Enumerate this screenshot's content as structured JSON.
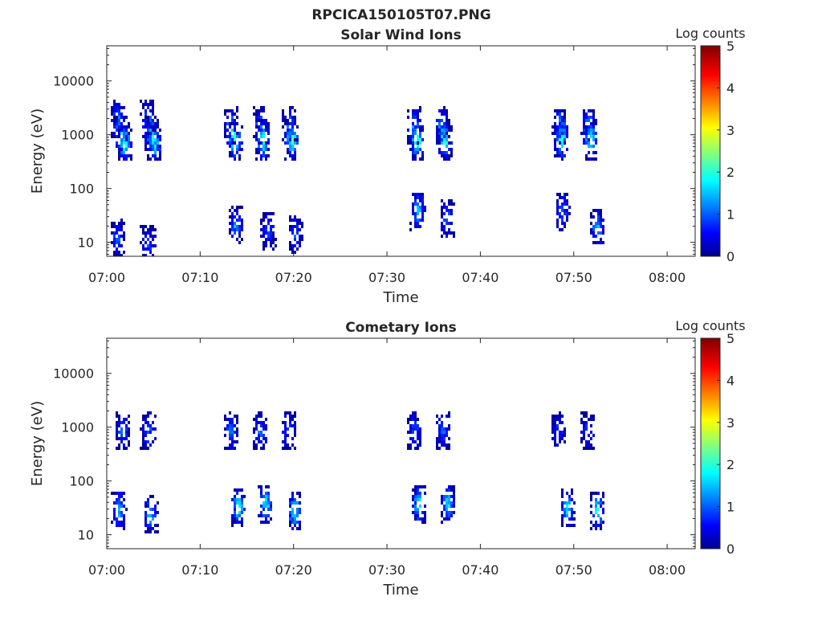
{
  "figure": {
    "title": "RPCICA150105T07.PNG"
  },
  "chart_data": [
    {
      "type": "heatmap",
      "title": "Solar Wind Ions",
      "xlabel": "Time",
      "ylabel": "Energy (eV)",
      "x_ticks": [
        "07:00",
        "07:10",
        "07:20",
        "07:30",
        "07:40",
        "07:50",
        "08:00"
      ],
      "x_range_minutes": [
        0,
        63
      ],
      "y_scale": "log",
      "y_ticks": [
        "10",
        "100",
        "1000",
        "10000"
      ],
      "y_range": [
        5.5,
        45000
      ],
      "colorbar": {
        "label": "Log counts",
        "ticks": [
          "0",
          "1",
          "2",
          "3",
          "4",
          "5"
        ],
        "range": [
          0,
          5
        ],
        "colormap": "jet"
      },
      "blobs": [
        {
          "t": 1.0,
          "e": 2000,
          "c": 1.5
        },
        {
          "t": 1.4,
          "e": 1100,
          "c": 2.2
        },
        {
          "t": 1.8,
          "e": 750,
          "c": 2.4
        },
        {
          "t": 4.3,
          "e": 2000,
          "c": 1.5
        },
        {
          "t": 4.7,
          "e": 1000,
          "c": 2.3
        },
        {
          "t": 5.0,
          "e": 750,
          "c": 2.2
        },
        {
          "t": 13.2,
          "e": 1500,
          "c": 1.6
        },
        {
          "t": 13.6,
          "e": 850,
          "c": 2.6
        },
        {
          "t": 16.3,
          "e": 1500,
          "c": 1.6
        },
        {
          "t": 16.6,
          "e": 850,
          "c": 2.5
        },
        {
          "t": 19.4,
          "e": 1500,
          "c": 1.6
        },
        {
          "t": 19.7,
          "e": 850,
          "c": 2.5
        },
        {
          "t": 32.8,
          "e": 1500,
          "c": 1.6
        },
        {
          "t": 33.1,
          "e": 850,
          "c": 2.6
        },
        {
          "t": 35.8,
          "e": 1500,
          "c": 1.6
        },
        {
          "t": 36.1,
          "e": 850,
          "c": 2.4
        },
        {
          "t": 48.4,
          "e": 1500,
          "c": 1.6
        },
        {
          "t": 48.6,
          "e": 850,
          "c": 2.4
        },
        {
          "t": 51.5,
          "e": 1500,
          "c": 1.6
        },
        {
          "t": 51.7,
          "e": 850,
          "c": 2.3
        },
        {
          "t": 1.0,
          "e": 12,
          "c": 1.2
        },
        {
          "t": 4.3,
          "e": 10,
          "c": 1.0
        },
        {
          "t": 13.7,
          "e": 22,
          "c": 1.5
        },
        {
          "t": 17.2,
          "e": 18,
          "c": 1.2
        },
        {
          "t": 20.1,
          "e": 15,
          "c": 1.2
        },
        {
          "t": 33.2,
          "e": 40,
          "c": 1.8
        },
        {
          "t": 36.3,
          "e": 30,
          "c": 1.2
        },
        {
          "t": 48.7,
          "e": 40,
          "c": 1.2
        },
        {
          "t": 52.4,
          "e": 20,
          "c": 1.7
        }
      ]
    },
    {
      "type": "heatmap",
      "title": "Cometary Ions",
      "xlabel": "Time",
      "ylabel": "Energy (eV)",
      "x_ticks": [
        "07:00",
        "07:10",
        "07:20",
        "07:30",
        "07:40",
        "07:50",
        "08:00"
      ],
      "x_range_minutes": [
        0,
        63
      ],
      "y_scale": "log",
      "y_ticks": [
        "10",
        "100",
        "1000",
        "10000"
      ],
      "y_range": [
        5.5,
        45000
      ],
      "colorbar": {
        "label": "Log counts",
        "ticks": [
          "0",
          "1",
          "2",
          "3",
          "4",
          "5"
        ],
        "range": [
          0,
          5
        ],
        "colormap": "jet"
      },
      "blobs": [
        {
          "t": 1.6,
          "e": 900,
          "c": 1.3
        },
        {
          "t": 4.3,
          "e": 900,
          "c": 1.3
        },
        {
          "t": 13.2,
          "e": 900,
          "c": 1.2
        },
        {
          "t": 16.3,
          "e": 900,
          "c": 1.2
        },
        {
          "t": 19.4,
          "e": 900,
          "c": 1.2
        },
        {
          "t": 32.8,
          "e": 900,
          "c": 1.2
        },
        {
          "t": 35.9,
          "e": 900,
          "c": 1.2
        },
        {
          "t": 48.2,
          "e": 900,
          "c": 1.0
        },
        {
          "t": 51.4,
          "e": 900,
          "c": 1.0
        },
        {
          "t": 1.2,
          "e": 30,
          "c": 1.8
        },
        {
          "t": 4.6,
          "e": 25,
          "c": 1.9
        },
        {
          "t": 14.0,
          "e": 35,
          "c": 2.2
        },
        {
          "t": 16.9,
          "e": 40,
          "c": 2.0
        },
        {
          "t": 20.0,
          "e": 30,
          "c": 2.3
        },
        {
          "t": 33.3,
          "e": 40,
          "c": 2.1
        },
        {
          "t": 36.4,
          "e": 40,
          "c": 2.0
        },
        {
          "t": 49.2,
          "e": 35,
          "c": 2.0
        },
        {
          "t": 52.4,
          "e": 30,
          "c": 2.2
        }
      ]
    }
  ]
}
